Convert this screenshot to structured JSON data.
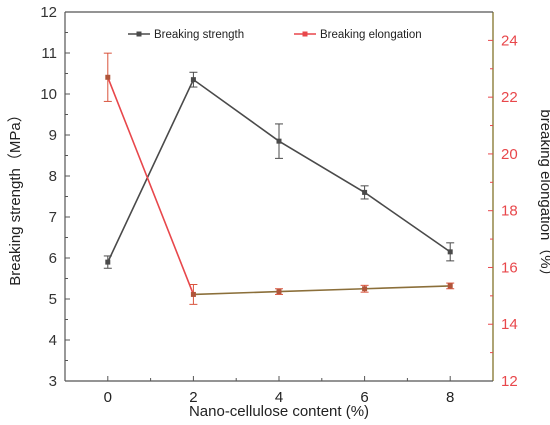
{
  "chart_data": {
    "type": "line",
    "x": [
      0,
      2,
      4,
      6,
      8
    ],
    "xlabel": "Nano-cellulose content (%)",
    "xlim": [
      -1,
      9
    ],
    "xticks": [
      0,
      2,
      4,
      6,
      8
    ],
    "ylabel_left": "Breaking strength（MPa）",
    "ylim_left": [
      3,
      12
    ],
    "yticks_left": [
      3,
      4,
      5,
      6,
      7,
      8,
      9,
      10,
      11,
      12
    ],
    "ylabel_right": "breaking elongation（%）",
    "ylim_right": [
      12,
      25
    ],
    "yticks_right": [
      12,
      14,
      16,
      18,
      20,
      22,
      24
    ],
    "legend_position": "top",
    "series": [
      {
        "name": "Breaking strength",
        "axis": "left",
        "color": "#4a4a4a",
        "values": [
          5.9,
          10.35,
          8.85,
          7.6,
          6.15
        ],
        "errors": [
          0.15,
          0.18,
          0.42,
          0.16,
          0.22
        ]
      },
      {
        "name": "Breaking elongation",
        "axis": "right",
        "color": "#e8474b",
        "values": [
          22.7,
          15.05,
          15.15,
          15.25,
          15.35
        ],
        "errors": [
          0.85,
          0.35,
          0.1,
          0.12,
          0.1
        ]
      }
    ]
  }
}
